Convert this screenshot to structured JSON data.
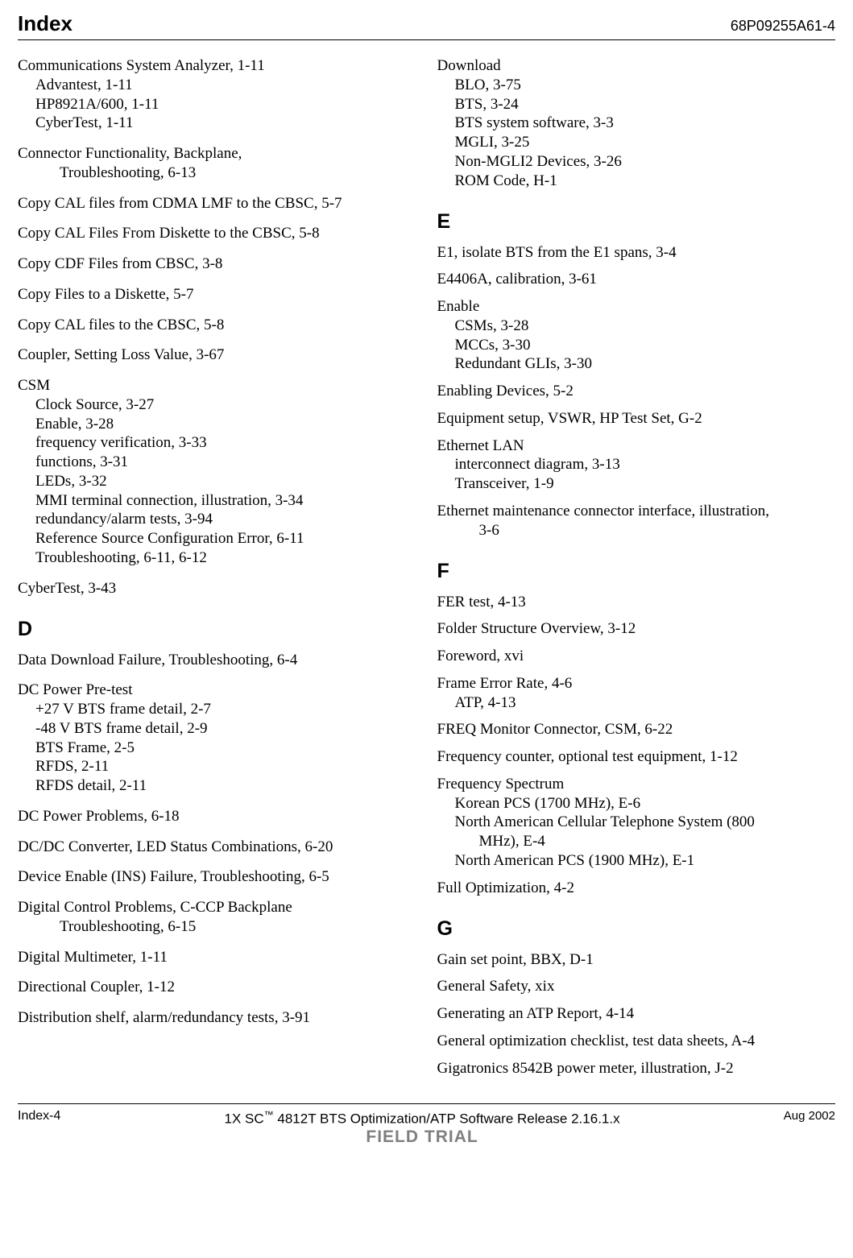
{
  "header": {
    "title": "Index",
    "docnum": "68P09255A61-4"
  },
  "left": {
    "e1": {
      "l0": "Communications System Analyzer, 1-11",
      "s1": "Advantest, 1-11",
      "s2": "HP8921A/600, 1-11",
      "s3": "CyberTest, 1-11"
    },
    "e2": {
      "l0": "Connector Functionality, Backplane,",
      "s1": "Troubleshooting, 6-13"
    },
    "e3": "Copy CAL files from CDMA LMF to the CBSC, 5-7",
    "e4": "Copy CAL Files From Diskette to the CBSC, 5-8",
    "e5": "Copy CDF Files from CBSC, 3-8",
    "e6": "Copy Files to a Diskette, 5-7",
    "e7": "Copy CAL files to the CBSC, 5-8",
    "e8": "Coupler, Setting Loss Value, 3-67",
    "e9": {
      "l0": "CSM",
      "s1": "Clock Source, 3-27",
      "s2": "Enable, 3-28",
      "s3": "frequency verification, 3-33",
      "s4": "functions, 3-31",
      "s5": "LEDs, 3-32",
      "s6": "MMI terminal connection, illustration, 3-34",
      "s7": "redundancy/alarm tests, 3-94",
      "s8": "Reference Source Configuration Error, 6-11",
      "s9": "Troubleshooting, 6-11, 6-12"
    },
    "e10": "CyberTest, 3-43",
    "secD": "D",
    "e11": "Data Download Failure, Troubleshooting, 6-4",
    "e12": {
      "l0": "DC Power Pre-test",
      "s1": "+27 V BTS frame detail, 2-7",
      "s2": "-48 V BTS frame detail, 2-9",
      "s3": "BTS Frame, 2-5",
      "s4": "RFDS, 2-11",
      "s5": "RFDS detail, 2-11"
    },
    "e13": "DC Power Problems, 6-18",
    "e14": "DC/DC Converter, LED Status Combinations, 6-20",
    "e15": "Device Enable (INS) Failure, Troubleshooting, 6-5",
    "e16": {
      "l0": "Digital Control Problems, C-CCP Backplane",
      "s1": "Troubleshooting, 6-15"
    },
    "e17": "Digital Multimeter, 1-11",
    "e18": "Directional Coupler, 1-12",
    "e19": "Distribution shelf, alarm/redundancy tests, 3-91"
  },
  "right": {
    "e1": {
      "l0": "Download",
      "s1": "BLO, 3-75",
      "s2": "BTS, 3-24",
      "s3": "BTS system software, 3-3",
      "s4": "MGLI, 3-25",
      "s5": "Non-MGLI2 Devices, 3-26",
      "s6": "ROM Code, H-1"
    },
    "secE": "E",
    "e2": "E1, isolate BTS from the E1 spans, 3-4",
    "e3": "E4406A, calibration, 3-61",
    "e4": {
      "l0": "Enable",
      "s1": "CSMs, 3-28",
      "s2": "MCCs, 3-30",
      "s3": "Redundant GLIs, 3-30"
    },
    "e5": "Enabling Devices, 5-2",
    "e6": "Equipment setup, VSWR, HP Test Set, G-2",
    "e7": {
      "l0": "Ethernet LAN",
      "s1": "interconnect diagram, 3-13",
      "s2": "Transceiver, 1-9"
    },
    "e8": {
      "l0": "Ethernet maintenance connector interface, illustration,",
      "s1": "3-6"
    },
    "secF": "F",
    "e9": "FER test, 4-13",
    "e10": "Folder Structure Overview, 3-12",
    "e11": "Foreword, xvi",
    "e12": {
      "l0": "Frame Error Rate, 4-6",
      "s1": "ATP, 4-13"
    },
    "e13": "FREQ Monitor Connector, CSM, 6-22",
    "e14": "Frequency counter, optional test equipment, 1-12",
    "e15": {
      "l0": "Frequency Spectrum",
      "s1": "Korean PCS (1700 MHz), E-6",
      "s2a": "North American Cellular Telephone System (800",
      "s2b": "MHz), E-4",
      "s3": "North American PCS (1900 MHz), E-1"
    },
    "e16": "Full Optimization, 4-2",
    "secG": "G",
    "e17": "Gain set point, BBX, D-1",
    "e18": "General Safety, xix",
    "e19": "Generating an ATP Report, 4-14",
    "e20": "General optimization checklist, test data sheets, A-4",
    "e21": "Gigatronics 8542B power meter, illustration, J-2"
  },
  "footer": {
    "left": "Index-4",
    "center_a": "1X SC",
    "center_b": " 4812T BTS Optimization/ATP Software Release 2.16.1.x",
    "trial": "FIELD TRIAL",
    "right": "Aug 2002"
  }
}
